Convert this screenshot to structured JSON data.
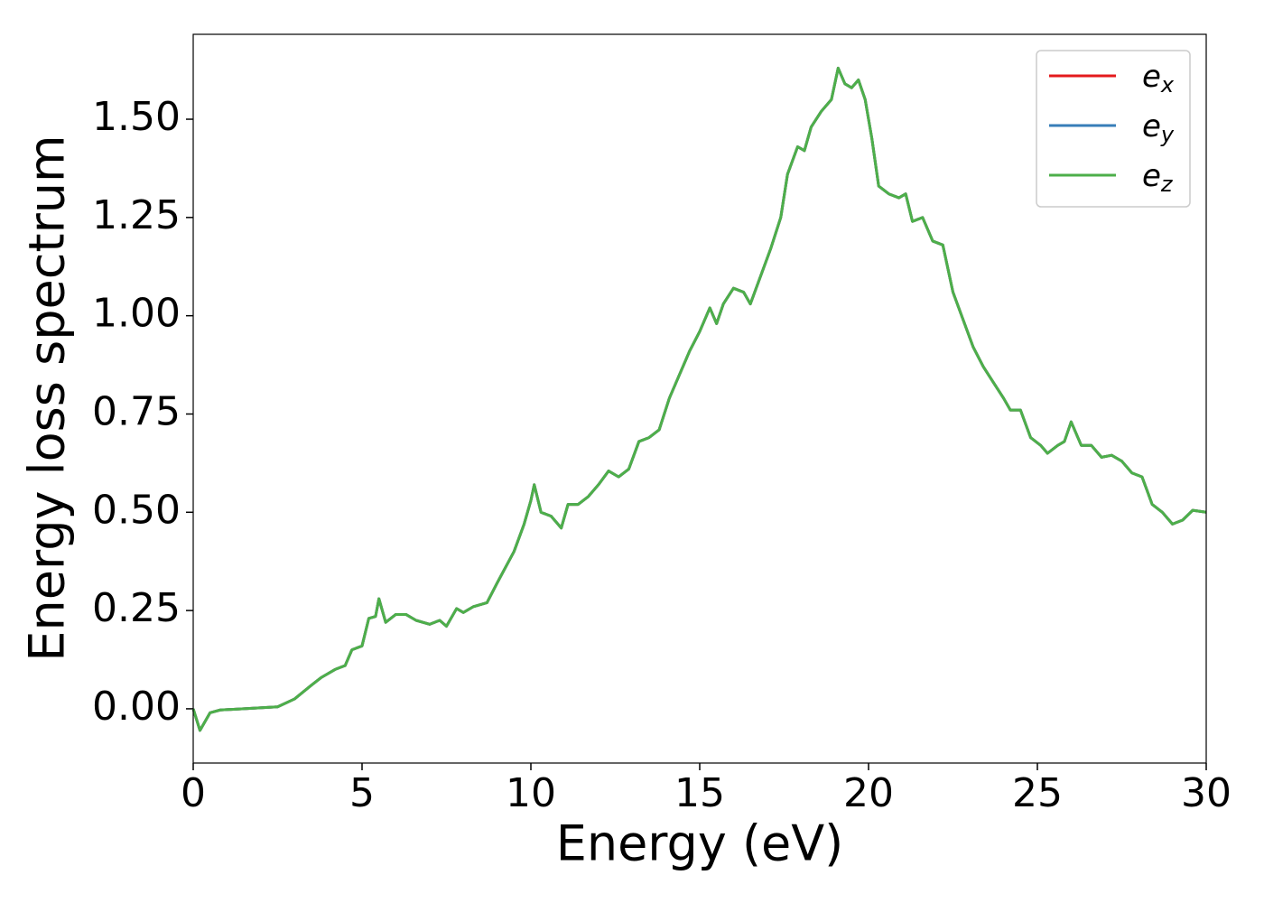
{
  "chart_data": {
    "type": "line",
    "xlabel": "Energy (eV)",
    "ylabel": "Energy loss spectrum",
    "x": [
      0,
      0.2,
      0.5,
      0.8,
      1.5,
      2.5,
      3.0,
      3.5,
      3.8,
      4.2,
      4.5,
      4.7,
      5.0,
      5.2,
      5.4,
      5.5,
      5.7,
      6.0,
      6.3,
      6.6,
      7.0,
      7.3,
      7.5,
      7.8,
      8.0,
      8.3,
      8.7,
      9.0,
      9.5,
      9.8,
      10.0,
      10.1,
      10.3,
      10.6,
      10.9,
      11.1,
      11.4,
      11.7,
      12.0,
      12.3,
      12.6,
      12.9,
      13.2,
      13.5,
      13.8,
      14.1,
      14.4,
      14.7,
      15.0,
      15.3,
      15.5,
      15.7,
      16.0,
      16.3,
      16.5,
      16.8,
      17.1,
      17.4,
      17.6,
      17.9,
      18.1,
      18.3,
      18.6,
      18.9,
      19.1,
      19.3,
      19.5,
      19.7,
      19.9,
      20.1,
      20.3,
      20.6,
      20.9,
      21.1,
      21.3,
      21.6,
      21.9,
      22.2,
      22.5,
      22.8,
      23.1,
      23.4,
      23.7,
      24.0,
      24.2,
      24.5,
      24.8,
      25.1,
      25.3,
      25.6,
      25.8,
      26.0,
      26.3,
      26.6,
      26.9,
      27.2,
      27.5,
      27.8,
      28.1,
      28.4,
      28.7,
      29.0,
      29.3,
      29.6,
      30
    ],
    "series": [
      {
        "name": "ex",
        "color": "#e41a1c",
        "values": [
          0,
          -0.055,
          -0.01,
          -0.003,
          0,
          0.005,
          0.025,
          0.06,
          0.08,
          0.1,
          0.11,
          0.15,
          0.16,
          0.23,
          0.235,
          0.28,
          0.22,
          0.24,
          0.24,
          0.225,
          0.215,
          0.225,
          0.21,
          0.255,
          0.245,
          0.26,
          0.27,
          0.32,
          0.4,
          0.47,
          0.53,
          0.57,
          0.5,
          0.49,
          0.46,
          0.52,
          0.52,
          0.54,
          0.57,
          0.605,
          0.59,
          0.61,
          0.68,
          0.69,
          0.71,
          0.79,
          0.85,
          0.91,
          0.96,
          1.02,
          0.98,
          1.03,
          1.07,
          1.06,
          1.03,
          1.1,
          1.17,
          1.25,
          1.36,
          1.43,
          1.42,
          1.48,
          1.52,
          1.55,
          1.63,
          1.59,
          1.58,
          1.6,
          1.55,
          1.45,
          1.33,
          1.31,
          1.3,
          1.31,
          1.24,
          1.25,
          1.19,
          1.18,
          1.06,
          0.99,
          0.92,
          0.87,
          0.83,
          0.79,
          0.76,
          0.76,
          0.69,
          0.67,
          0.65,
          0.67,
          0.68,
          0.73,
          0.67,
          0.67,
          0.64,
          0.645,
          0.63,
          0.6,
          0.59,
          0.52,
          0.5,
          0.47,
          0.48,
          0.505,
          0.5
        ]
      },
      {
        "name": "ey",
        "color": "#377eb8",
        "values": [
          0,
          -0.055,
          -0.01,
          -0.003,
          0,
          0.005,
          0.025,
          0.06,
          0.08,
          0.1,
          0.11,
          0.15,
          0.16,
          0.23,
          0.235,
          0.28,
          0.22,
          0.24,
          0.24,
          0.225,
          0.215,
          0.225,
          0.21,
          0.255,
          0.245,
          0.26,
          0.27,
          0.32,
          0.4,
          0.47,
          0.53,
          0.57,
          0.5,
          0.49,
          0.46,
          0.52,
          0.52,
          0.54,
          0.57,
          0.605,
          0.59,
          0.61,
          0.68,
          0.69,
          0.71,
          0.79,
          0.85,
          0.91,
          0.96,
          1.02,
          0.98,
          1.03,
          1.07,
          1.06,
          1.03,
          1.1,
          1.17,
          1.25,
          1.36,
          1.43,
          1.42,
          1.48,
          1.52,
          1.55,
          1.63,
          1.59,
          1.58,
          1.6,
          1.55,
          1.45,
          1.33,
          1.31,
          1.3,
          1.31,
          1.24,
          1.25,
          1.19,
          1.18,
          1.06,
          0.99,
          0.92,
          0.87,
          0.83,
          0.79,
          0.76,
          0.76,
          0.69,
          0.67,
          0.65,
          0.67,
          0.68,
          0.73,
          0.67,
          0.67,
          0.64,
          0.645,
          0.63,
          0.6,
          0.59,
          0.52,
          0.5,
          0.47,
          0.48,
          0.505,
          0.5
        ]
      },
      {
        "name": "ez",
        "color": "#4daf4a",
        "values": [
          0,
          -0.055,
          -0.01,
          -0.003,
          0,
          0.005,
          0.025,
          0.06,
          0.08,
          0.1,
          0.11,
          0.15,
          0.16,
          0.23,
          0.235,
          0.28,
          0.22,
          0.24,
          0.24,
          0.225,
          0.215,
          0.225,
          0.21,
          0.255,
          0.245,
          0.26,
          0.27,
          0.32,
          0.4,
          0.47,
          0.53,
          0.57,
          0.5,
          0.49,
          0.46,
          0.52,
          0.52,
          0.54,
          0.57,
          0.605,
          0.59,
          0.61,
          0.68,
          0.69,
          0.71,
          0.79,
          0.85,
          0.91,
          0.96,
          1.02,
          0.98,
          1.03,
          1.07,
          1.06,
          1.03,
          1.1,
          1.17,
          1.25,
          1.36,
          1.43,
          1.42,
          1.48,
          1.52,
          1.55,
          1.63,
          1.59,
          1.58,
          1.6,
          1.55,
          1.45,
          1.33,
          1.31,
          1.3,
          1.31,
          1.24,
          1.25,
          1.19,
          1.18,
          1.06,
          0.99,
          0.92,
          0.87,
          0.83,
          0.79,
          0.76,
          0.76,
          0.69,
          0.67,
          0.65,
          0.67,
          0.68,
          0.73,
          0.67,
          0.67,
          0.64,
          0.645,
          0.63,
          0.6,
          0.59,
          0.52,
          0.5,
          0.47,
          0.48,
          0.505,
          0.5
        ]
      }
    ],
    "xlim": [
      0,
      30
    ],
    "xticks": [
      0,
      5,
      10,
      15,
      20,
      25,
      30
    ],
    "ylim": [
      -0.138,
      1.716
    ],
    "yticks": [
      {
        "value": 0,
        "label": "0.00"
      },
      {
        "value": 0.25,
        "label": "0.25"
      },
      {
        "value": 0.5,
        "label": "0.50"
      },
      {
        "value": 0.75,
        "label": "0.75"
      },
      {
        "value": 1,
        "label": "1.00"
      },
      {
        "value": 1.25,
        "label": "1.25"
      },
      {
        "value": 1.5,
        "label": "1.50"
      }
    ],
    "grid": false,
    "legend": "upper right"
  }
}
